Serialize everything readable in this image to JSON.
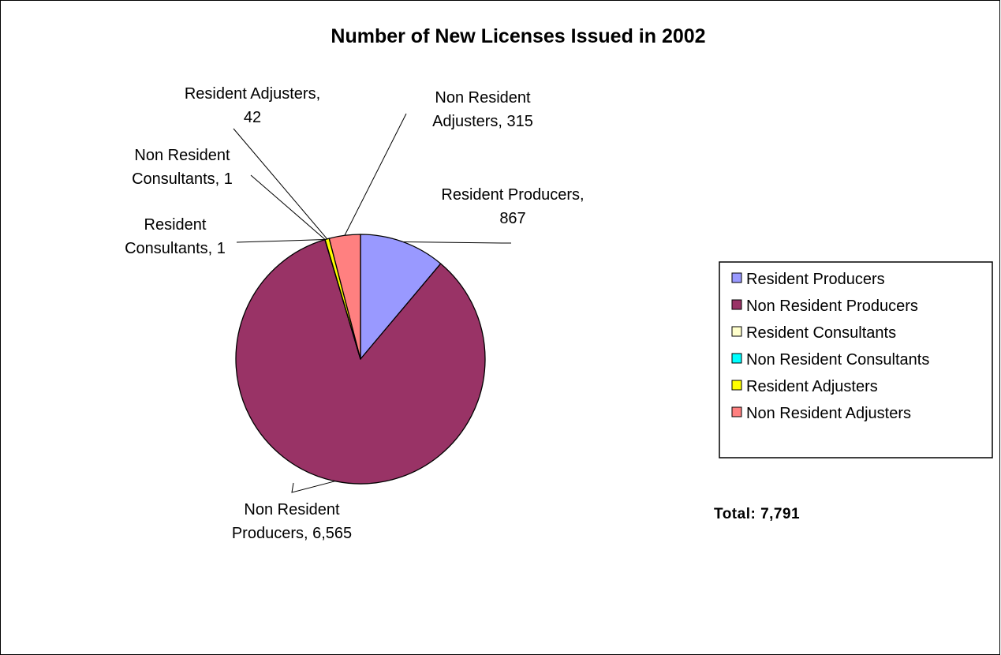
{
  "chart_data": {
    "type": "pie",
    "title": "Number of New Licenses Issued in 2002",
    "slices": [
      {
        "name": "Resident Producers",
        "value": 867,
        "value_label": "867",
        "color": "#9999FF"
      },
      {
        "name": "Non Resident Producers",
        "value": 6565,
        "value_label": "6,565",
        "color": "#993366"
      },
      {
        "name": "Resident Consultants",
        "value": 1,
        "value_label": "1",
        "color": "#FFFFCC"
      },
      {
        "name": "Non Resident Consultants",
        "value": 1,
        "value_label": "1",
        "color": "#00FFFF"
      },
      {
        "name": "Resident Adjusters",
        "value": 42,
        "value_label": "42",
        "color": "#FFFF00"
      },
      {
        "name": "Non Resident Adjusters",
        "value": 315,
        "value_label": "315",
        "color": "#FF8080"
      }
    ],
    "legend_position": "right",
    "total_label": "Total: 7,791"
  }
}
